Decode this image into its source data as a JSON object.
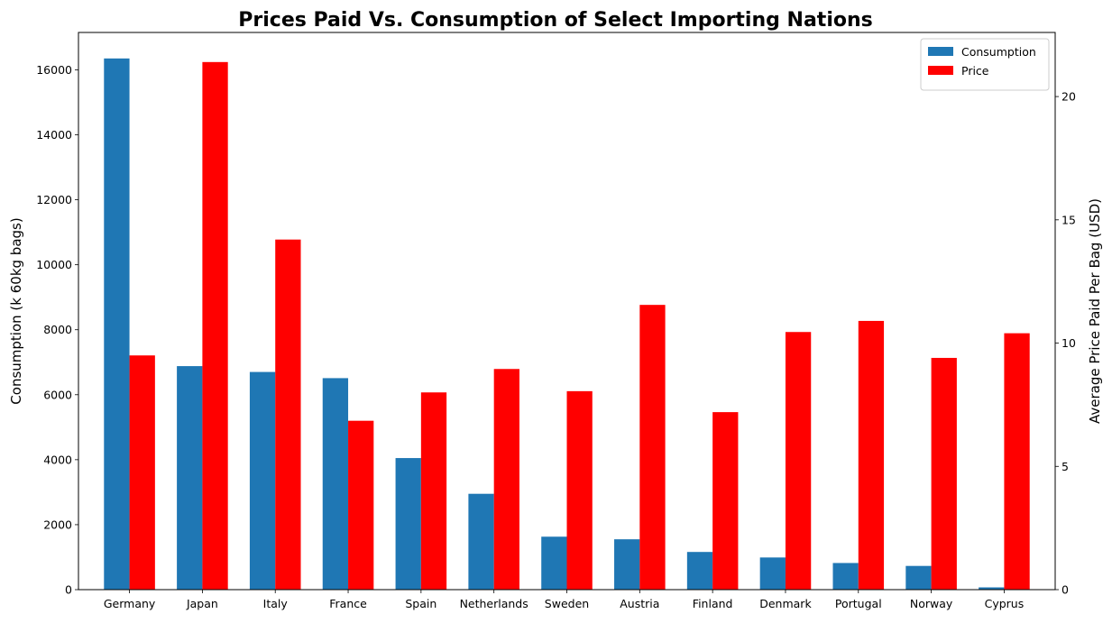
{
  "chart_data": {
    "type": "bar",
    "title": "Prices Paid Vs. Consumption of Select Importing Nations",
    "xlabel": "",
    "ylabel_left": "Consumption (k 60kg bags)",
    "ylabel_right": "Average Price Paid Per Bag (USD)",
    "categories": [
      "Germany",
      "Japan",
      "Italy",
      "France",
      "Spain",
      "Netherlands",
      "Sweden",
      "Austria",
      "Finland",
      "Denmark",
      "Portugal",
      "Norway",
      "Cyprus"
    ],
    "series": [
      {
        "name": "Consumption",
        "axis": "left",
        "color": "#1f77b4",
        "values": [
          16350,
          6880,
          6700,
          6510,
          4050,
          2950,
          1630,
          1550,
          1160,
          990,
          820,
          730,
          70
        ]
      },
      {
        "name": "Price",
        "axis": "right",
        "color": "#ff0000",
        "values": [
          9.5,
          21.4,
          14.2,
          6.85,
          8.0,
          8.95,
          8.05,
          11.55,
          7.2,
          10.45,
          10.9,
          9.4,
          10.4
        ]
      }
    ],
    "ylim_left": [
      0,
      17150
    ],
    "ylim_right": [
      0,
      22.6
    ],
    "yticks_left": [
      0,
      2000,
      4000,
      6000,
      8000,
      10000,
      12000,
      14000,
      16000
    ],
    "yticks_right": [
      0,
      5,
      10,
      15,
      20
    ],
    "legend": {
      "placement": "top-right",
      "entries": [
        "Consumption",
        "Price"
      ]
    },
    "grid": false
  }
}
